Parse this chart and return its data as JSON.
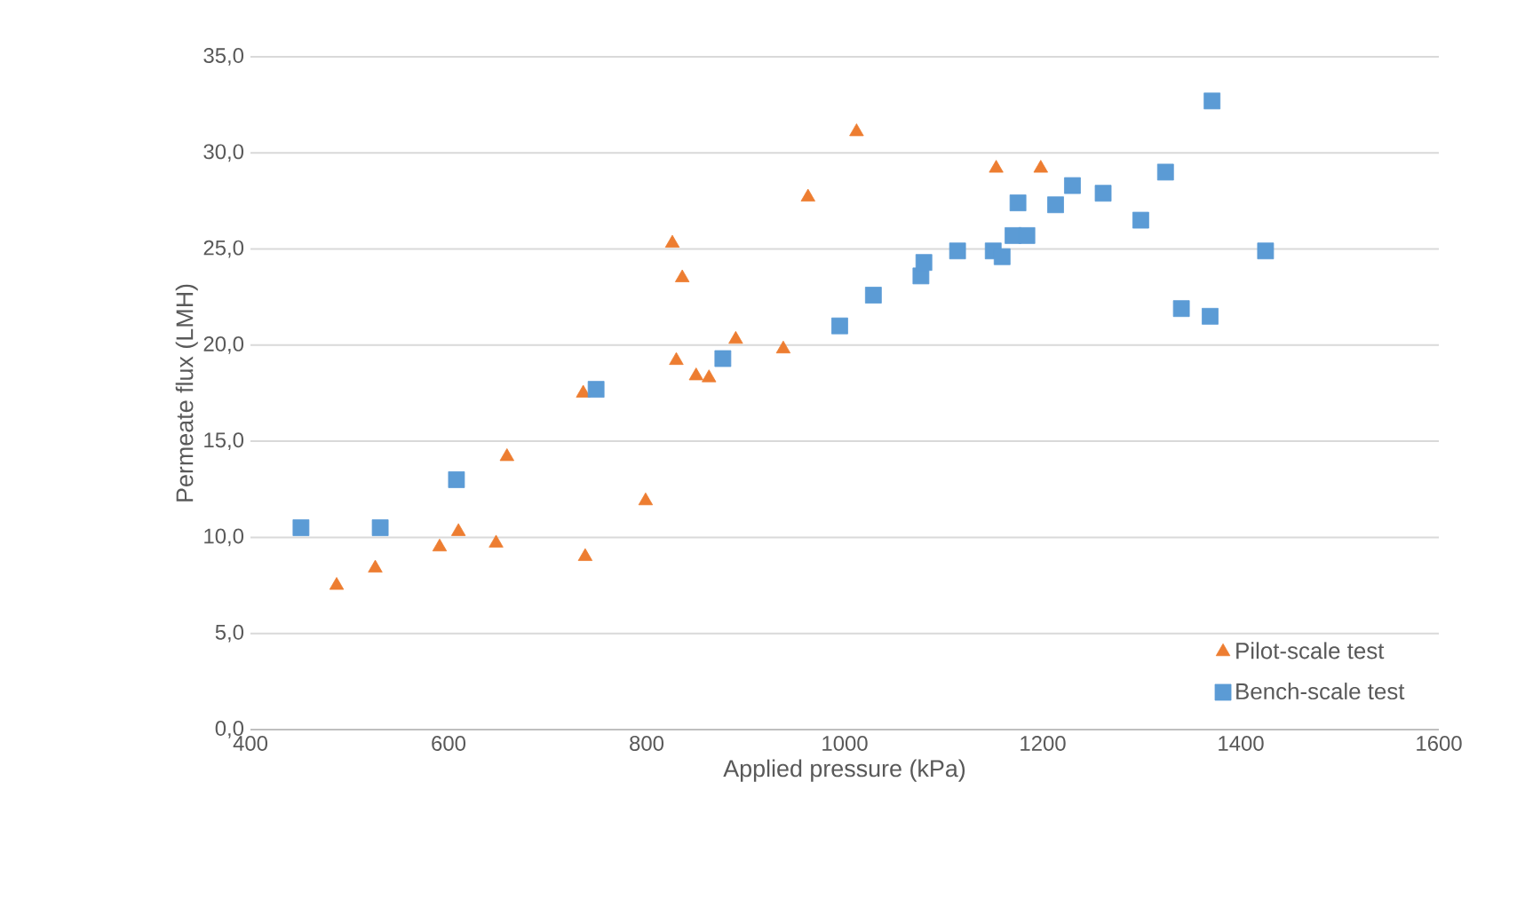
{
  "chart_data": {
    "type": "scatter",
    "xlabel": "Applied pressure (kPa)",
    "ylabel": "Permeate flux (LMH)",
    "xlim": [
      400,
      1600
    ],
    "xticks": [
      400,
      600,
      800,
      1000,
      1200,
      1400,
      1600
    ],
    "ylim": [
      0,
      35
    ],
    "yticks": [
      {
        "value": 0,
        "label": "0,0"
      },
      {
        "value": 5,
        "label": "5,0"
      },
      {
        "value": 10,
        "label": "10,0"
      },
      {
        "value": 15,
        "label": "15,0"
      },
      {
        "value": 20,
        "label": "20,0"
      },
      {
        "value": 25,
        "label": "25,0"
      },
      {
        "value": 30,
        "label": "30,0"
      },
      {
        "value": 35,
        "label": "35,0"
      }
    ],
    "grid": "y",
    "legend": "bottom right",
    "series": [
      {
        "name": "Pilot-scale test",
        "color": "#ed7d31",
        "marker": "triangle",
        "x": [
          487,
          526,
          591,
          610,
          648,
          659,
          736,
          738,
          799,
          826,
          830,
          836,
          850,
          863,
          890,
          938,
          963,
          1012,
          1153,
          1198
        ],
        "values": [
          7.5,
          8.4,
          9.5,
          10.3,
          9.7,
          14.2,
          17.5,
          9.0,
          11.9,
          25.3,
          19.2,
          23.5,
          18.4,
          18.3,
          20.3,
          19.8,
          27.7,
          31.1,
          29.2,
          29.2
        ]
      },
      {
        "name": "Bench-scale test",
        "color": "#5b9bd5",
        "marker": "square",
        "x": [
          451,
          531,
          608,
          749,
          877,
          995,
          1029,
          1077,
          1080,
          1114,
          1150,
          1159,
          1170,
          1175,
          1184,
          1213,
          1230,
          1261,
          1299,
          1324,
          1340,
          1369,
          1371,
          1425
        ],
        "values": [
          10.5,
          10.5,
          13.0,
          17.7,
          19.3,
          21.0,
          22.6,
          23.6,
          24.3,
          24.9,
          24.9,
          24.6,
          25.7,
          27.4,
          25.7,
          27.3,
          28.3,
          27.9,
          26.5,
          29.0,
          21.9,
          21.5,
          32.7,
          24.9
        ]
      }
    ]
  }
}
